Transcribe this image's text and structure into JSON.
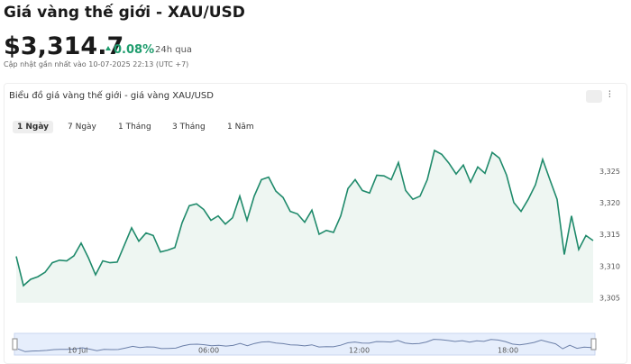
{
  "header": {
    "title": "Giá vàng thế giới - XAU/USD",
    "price": "$3,314.7",
    "change": "0.08%",
    "period": "24h qua",
    "updated": "Cập nhật gần nhất vào 10-07-2025 22:13 (UTC +7)"
  },
  "card": {
    "title": "Biểu đồ giá vàng thế giới - giá vàng XAU/USD",
    "tabs": [
      "1 Ngày",
      "7 Ngày",
      "1 Tháng",
      "3 Tháng",
      "1 Năm"
    ]
  },
  "chart_data": {
    "type": "area",
    "color": "#1f8a6b",
    "values": [
      3311.6,
      3307.0,
      3308.0,
      3308.4,
      3309.1,
      3310.6,
      3311.0,
      3310.9,
      3311.7,
      3313.7,
      3311.4,
      3308.7,
      3310.9,
      3310.6,
      3310.7,
      3313.4,
      3316.1,
      3314.0,
      3315.3,
      3314.9,
      3312.3,
      3312.6,
      3313.0,
      3316.9,
      3319.6,
      3319.9,
      3319.0,
      3317.3,
      3318.0,
      3316.7,
      3317.7,
      3321.1,
      3317.3,
      3321.1,
      3323.7,
      3324.1,
      3321.9,
      3320.9,
      3318.7,
      3318.3,
      3317.0,
      3318.9,
      3315.1,
      3315.7,
      3315.4,
      3318.0,
      3322.3,
      3323.7,
      3322.0,
      3321.6,
      3324.4,
      3324.3,
      3323.7,
      3326.4,
      3322.0,
      3320.6,
      3321.1,
      3323.7,
      3328.3,
      3327.7,
      3326.3,
      3324.6,
      3326.0,
      3323.3,
      3325.7,
      3324.7,
      3328.0,
      3327.1,
      3324.4,
      3320.1,
      3318.7,
      3320.6,
      3322.9,
      3326.9,
      3323.7,
      3320.6,
      3311.9,
      3318.0,
      3312.7,
      3314.9,
      3314.1
    ],
    "ylim": [
      3304.3,
      3329.3
    ],
    "yticks": [
      {
        "value": 3305,
        "label": "3,305"
      },
      {
        "value": 3310,
        "label": "3,310"
      },
      {
        "value": 3315,
        "label": "3,315"
      },
      {
        "value": 3320,
        "label": "3,320"
      },
      {
        "value": 3325,
        "label": "3,325"
      }
    ],
    "navigator_labels": [
      "10 Jul",
      "06:00",
      "12:00",
      "18:00"
    ]
  }
}
